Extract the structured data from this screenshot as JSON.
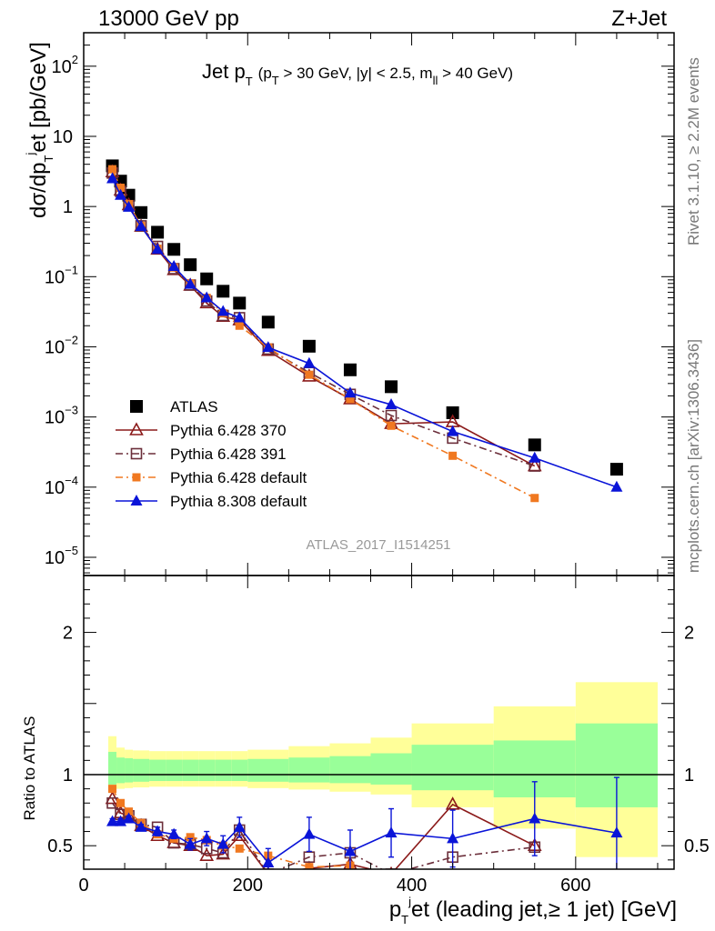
{
  "header": {
    "left": "13000 GeV pp",
    "right": "Z+Jet"
  },
  "side_labels": {
    "rivet": "Rivet 3.1.10, ≥ 2.2M events",
    "mcplots": "mcplots.cern.ch [arXiv:1306.3436]"
  },
  "chart_data": [
    {
      "type": "scatter",
      "title_main": "Jet p",
      "title_sub": "T",
      "title_cuts": "(p",
      "title_cuts_sub": "T",
      "title_cuts_rest": " > 30 GeV, |y| < 2.5, m",
      "title_cuts_sub2": "ll",
      "title_cuts_end": " > 40 GeV)",
      "watermark": "ATLAS_2017_I1514251",
      "ylabel": "dσ/dp",
      "ylabel_sub": "T",
      "ylabel_sup": "j",
      "ylabel_end": "et [pb/GeV]",
      "yscale": "log",
      "ylim": [
        5.5e-06,
        300
      ],
      "xlim": [
        0,
        720
      ],
      "yticks": [
        {
          "v": 1e-05,
          "base": "10",
          "exp": "−5"
        },
        {
          "v": 0.0001,
          "base": "10",
          "exp": "−4"
        },
        {
          "v": 0.001,
          "base": "10",
          "exp": "−3"
        },
        {
          "v": 0.01,
          "base": "10",
          "exp": "−2"
        },
        {
          "v": 0.1,
          "base": "10",
          "exp": "−1"
        },
        {
          "v": 1,
          "base": "1",
          "exp": ""
        },
        {
          "v": 10,
          "base": "10",
          "exp": ""
        },
        {
          "v": 100,
          "base": "10",
          "exp": "2"
        }
      ],
      "legend_position": "lower-left",
      "series": [
        {
          "name": "ATLAS",
          "color": "#000000",
          "marker": "square-filled",
          "x": [
            35,
            45,
            55,
            70,
            90,
            110,
            130,
            150,
            170,
            190,
            225,
            275,
            325,
            375,
            450,
            550,
            650
          ],
          "y": [
            3.8,
            2.3,
            1.45,
            0.82,
            0.43,
            0.245,
            0.148,
            0.093,
            0.062,
            0.042,
            0.0225,
            0.0102,
            0.0047,
            0.0027,
            0.00115,
            0.0004,
            0.00018
          ]
        },
        {
          "name": "Pythia 6.428 370",
          "color": "#8b1a1a",
          "marker": "triangle-open",
          "dash": "",
          "x": [
            35,
            45,
            55,
            70,
            90,
            110,
            130,
            150,
            170,
            190,
            225,
            275,
            325,
            375,
            450,
            550
          ],
          "y": [
            3.1,
            1.7,
            1.05,
            0.52,
            0.245,
            0.125,
            0.075,
            0.042,
            0.027,
            0.024,
            0.0088,
            0.0038,
            0.0018,
            0.0008,
            0.00085,
            0.0002
          ]
        },
        {
          "name": "Pythia 6.428 391",
          "color": "#6b2e3a",
          "marker": "square-open",
          "dash": "8 4 2 4",
          "x": [
            35,
            45,
            55,
            70,
            90,
            110,
            130,
            150,
            170,
            190,
            225,
            275,
            325,
            375,
            450,
            550
          ],
          "y": [
            3.0,
            1.65,
            1.03,
            0.53,
            0.27,
            0.13,
            0.076,
            0.045,
            0.028,
            0.026,
            0.0093,
            0.0043,
            0.0021,
            0.00105,
            0.0005,
            0.0002
          ]
        },
        {
          "name": "Pythia 6.428 default",
          "color": "#f07820",
          "marker": "square-filled-small",
          "dash": "8 4 2 4",
          "x": [
            35,
            45,
            55,
            70,
            90,
            110,
            130,
            150,
            170,
            190,
            225,
            275,
            325,
            375,
            450,
            550
          ],
          "y": [
            3.4,
            1.85,
            1.08,
            0.53,
            0.25,
            0.135,
            0.08,
            0.05,
            0.03,
            0.02,
            0.0098,
            0.004,
            0.0018,
            0.00075,
            0.00028,
            7e-05
          ]
        },
        {
          "name": "Pythia 8.308 default",
          "color": "#0a14d8",
          "marker": "triangle-filled",
          "dash": "",
          "x": [
            35,
            45,
            55,
            70,
            90,
            110,
            130,
            150,
            170,
            190,
            225,
            275,
            325,
            375,
            450,
            550,
            650
          ],
          "y": [
            2.5,
            1.45,
            0.98,
            0.52,
            0.245,
            0.14,
            0.078,
            0.05,
            0.032,
            0.026,
            0.0098,
            0.0058,
            0.0022,
            0.0015,
            0.00062,
            0.00026,
            0.0001
          ]
        }
      ]
    },
    {
      "type": "scatter",
      "ylabel": "Ratio to ATLAS",
      "xlabel_pre": "p",
      "xlabel_sub": "T",
      "xlabel_sup": "j",
      "xlabel_end": "et (leading jet,≥ 1 jet) [GeV]",
      "xlim": [
        0,
        720
      ],
      "ylim": [
        0.335,
        2.4
      ],
      "xticks": [
        0,
        200,
        400,
        600
      ],
      "yticks": [
        0.5,
        1,
        2
      ],
      "bands": {
        "bins": [
          [
            30,
            40
          ],
          [
            40,
            50
          ],
          [
            50,
            60
          ],
          [
            60,
            80
          ],
          [
            80,
            100
          ],
          [
            100,
            120
          ],
          [
            120,
            140
          ],
          [
            140,
            160
          ],
          [
            160,
            180
          ],
          [
            180,
            200
          ],
          [
            200,
            250
          ],
          [
            250,
            300
          ],
          [
            300,
            350
          ],
          [
            350,
            400
          ],
          [
            400,
            500
          ],
          [
            500,
            600
          ],
          [
            600,
            700
          ]
        ],
        "stat_lo": [
          0.93,
          0.94,
          0.945,
          0.95,
          0.955,
          0.955,
          0.955,
          0.955,
          0.955,
          0.955,
          0.95,
          0.945,
          0.94,
          0.93,
          0.89,
          0.84,
          0.77
        ],
        "stat_hi": [
          1.16,
          1.12,
          1.115,
          1.11,
          1.105,
          1.105,
          1.105,
          1.105,
          1.105,
          1.105,
          1.11,
          1.12,
          1.13,
          1.15,
          1.21,
          1.24,
          1.36
        ],
        "tot_lo": [
          0.88,
          0.9,
          0.905,
          0.91,
          0.915,
          0.915,
          0.915,
          0.915,
          0.915,
          0.915,
          0.905,
          0.895,
          0.88,
          0.86,
          0.77,
          0.62,
          0.42
        ],
        "tot_hi": [
          1.27,
          1.19,
          1.175,
          1.17,
          1.165,
          1.165,
          1.165,
          1.165,
          1.165,
          1.165,
          1.175,
          1.2,
          1.22,
          1.26,
          1.36,
          1.48,
          1.65
        ]
      },
      "series": [
        {
          "name": "Pythia 6.428 370",
          "color": "#8b1a1a",
          "marker": "triangle-open",
          "dash": "",
          "x": [
            35,
            45,
            55,
            70,
            90,
            110,
            130,
            150,
            170,
            190,
            225,
            275,
            325,
            375,
            450,
            550
          ],
          "y": [
            0.83,
            0.73,
            0.71,
            0.64,
            0.57,
            0.52,
            0.5,
            0.43,
            0.44,
            0.57,
            0.3,
            0.34,
            0.37,
            0.3,
            0.79,
            0.5
          ]
        },
        {
          "name": "Pythia 6.428 391",
          "color": "#6b2e3a",
          "marker": "square-open",
          "dash": "8 4 2 4",
          "x": [
            35,
            45,
            55,
            70,
            90,
            110,
            130,
            150,
            170,
            190,
            225,
            275,
            325,
            375,
            450,
            550
          ],
          "y": [
            0.8,
            0.72,
            0.71,
            0.65,
            0.63,
            0.52,
            0.51,
            0.48,
            0.45,
            0.61,
            0.3,
            0.42,
            0.45,
            0.3,
            0.42,
            0.49
          ]
        },
        {
          "name": "Pythia 6.428 default",
          "color": "#f07820",
          "marker": "square-filled-small",
          "dash": "8 4 2 4",
          "x": [
            35,
            45,
            55,
            70,
            90,
            110,
            130,
            150,
            170,
            190,
            225,
            275,
            325
          ],
          "y": [
            0.9,
            0.8,
            0.74,
            0.66,
            0.58,
            0.55,
            0.56,
            0.54,
            0.5,
            0.48,
            0.43,
            0.35,
            0.36
          ]
        },
        {
          "name": "Pythia 8.308 default",
          "color": "#0a14d8",
          "marker": "triangle-filled",
          "dash": "",
          "x": [
            35,
            45,
            55,
            70,
            90,
            110,
            130,
            150,
            170,
            190,
            225,
            275,
            325,
            375,
            450,
            550,
            650
          ],
          "y": [
            0.67,
            0.67,
            0.69,
            0.63,
            0.6,
            0.58,
            0.51,
            0.55,
            0.51,
            0.63,
            0.38,
            0.58,
            0.46,
            0.59,
            0.55,
            0.69,
            0.59
          ],
          "err": [
            0.02,
            0.02,
            0.02,
            0.02,
            0.03,
            0.03,
            0.04,
            0.05,
            0.06,
            0.07,
            0.1,
            0.12,
            0.15,
            0.17,
            0.2,
            0.26,
            0.39
          ]
        }
      ]
    }
  ]
}
